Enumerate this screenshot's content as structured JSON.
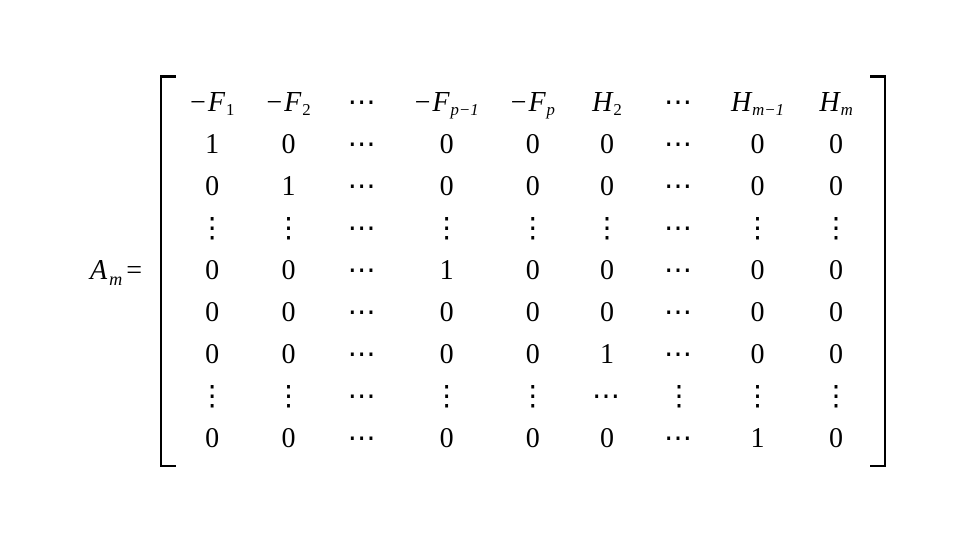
{
  "lhs": {
    "A": "A",
    "m": "m",
    "equals": "="
  },
  "cdots": "⋯",
  "vdots": "⋮",
  "rows": [
    [
      {
        "t": "neg-var",
        "v": "F",
        "s": "1"
      },
      {
        "t": "neg-var",
        "v": "F",
        "s": "2"
      },
      {
        "t": "cdots"
      },
      {
        "t": "neg-var",
        "v": "F",
        "s": "p−1"
      },
      {
        "t": "neg-var",
        "v": "F",
        "s": "p"
      },
      {
        "t": "var",
        "v": "H",
        "s": "2"
      },
      {
        "t": "cdots"
      },
      {
        "t": "var",
        "v": "H",
        "s": "m−1"
      },
      {
        "t": "var",
        "v": "H",
        "s": "m"
      }
    ],
    [
      {
        "t": "num",
        "v": "1"
      },
      {
        "t": "num",
        "v": "0"
      },
      {
        "t": "cdots"
      },
      {
        "t": "num",
        "v": "0"
      },
      {
        "t": "num",
        "v": "0"
      },
      {
        "t": "num",
        "v": "0"
      },
      {
        "t": "cdots"
      },
      {
        "t": "num",
        "v": "0"
      },
      {
        "t": "num",
        "v": "0"
      }
    ],
    [
      {
        "t": "num",
        "v": "0"
      },
      {
        "t": "num",
        "v": "1"
      },
      {
        "t": "cdots"
      },
      {
        "t": "num",
        "v": "0"
      },
      {
        "t": "num",
        "v": "0"
      },
      {
        "t": "num",
        "v": "0"
      },
      {
        "t": "cdots"
      },
      {
        "t": "num",
        "v": "0"
      },
      {
        "t": "num",
        "v": "0"
      }
    ],
    [
      {
        "t": "vdots"
      },
      {
        "t": "vdots"
      },
      {
        "t": "cdots"
      },
      {
        "t": "vdots"
      },
      {
        "t": "vdots"
      },
      {
        "t": "vdots"
      },
      {
        "t": "cdots"
      },
      {
        "t": "vdots"
      },
      {
        "t": "vdots"
      }
    ],
    [
      {
        "t": "num",
        "v": "0"
      },
      {
        "t": "num",
        "v": "0"
      },
      {
        "t": "cdots"
      },
      {
        "t": "num",
        "v": "1"
      },
      {
        "t": "num",
        "v": "0"
      },
      {
        "t": "num",
        "v": "0"
      },
      {
        "t": "cdots"
      },
      {
        "t": "num",
        "v": "0"
      },
      {
        "t": "num",
        "v": "0"
      }
    ],
    [
      {
        "t": "num",
        "v": "0"
      },
      {
        "t": "num",
        "v": "0"
      },
      {
        "t": "cdots"
      },
      {
        "t": "num",
        "v": "0"
      },
      {
        "t": "num",
        "v": "0"
      },
      {
        "t": "num",
        "v": "0"
      },
      {
        "t": "cdots"
      },
      {
        "t": "num",
        "v": "0"
      },
      {
        "t": "num",
        "v": "0"
      }
    ],
    [
      {
        "t": "num",
        "v": "0"
      },
      {
        "t": "num",
        "v": "0"
      },
      {
        "t": "cdots"
      },
      {
        "t": "num",
        "v": "0"
      },
      {
        "t": "num",
        "v": "0"
      },
      {
        "t": "num",
        "v": "1"
      },
      {
        "t": "cdots"
      },
      {
        "t": "num",
        "v": "0"
      },
      {
        "t": "num",
        "v": "0"
      }
    ],
    [
      {
        "t": "vdots"
      },
      {
        "t": "vdots"
      },
      {
        "t": "cdots"
      },
      {
        "t": "vdots"
      },
      {
        "t": "vdots"
      },
      {
        "t": "cdots"
      },
      {
        "t": "vdots"
      },
      {
        "t": "vdots"
      },
      {
        "t": "vdots"
      }
    ],
    [
      {
        "t": "num",
        "v": "0"
      },
      {
        "t": "num",
        "v": "0"
      },
      {
        "t": "cdots"
      },
      {
        "t": "num",
        "v": "0"
      },
      {
        "t": "num",
        "v": "0"
      },
      {
        "t": "num",
        "v": "0"
      },
      {
        "t": "cdots"
      },
      {
        "t": "num",
        "v": "1"
      },
      {
        "t": "num",
        "v": "0"
      }
    ]
  ]
}
